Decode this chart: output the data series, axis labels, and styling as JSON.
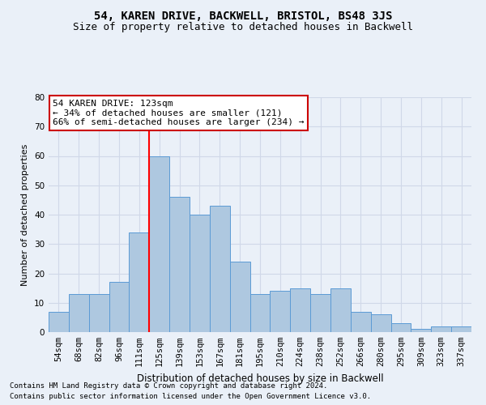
{
  "title": "54, KAREN DRIVE, BACKWELL, BRISTOL, BS48 3JS",
  "subtitle": "Size of property relative to detached houses in Backwell",
  "xlabel": "Distribution of detached houses by size in Backwell",
  "ylabel": "Number of detached properties",
  "bin_labels": [
    "54sqm",
    "68sqm",
    "82sqm",
    "96sqm",
    "111sqm",
    "125sqm",
    "139sqm",
    "153sqm",
    "167sqm",
    "181sqm",
    "195sqm",
    "210sqm",
    "224sqm",
    "238sqm",
    "252sqm",
    "266sqm",
    "280sqm",
    "295sqm",
    "309sqm",
    "323sqm",
    "337sqm"
  ],
  "bar_heights": [
    7,
    13,
    13,
    17,
    34,
    60,
    46,
    40,
    43,
    24,
    13,
    14,
    15,
    13,
    15,
    7,
    6,
    3,
    1,
    2,
    2
  ],
  "bar_color": "#aec8e0",
  "bar_edge_color": "#5b9bd5",
  "grid_color": "#d0d8e8",
  "background_color": "#eaf0f8",
  "ylim": [
    0,
    80
  ],
  "yticks": [
    0,
    10,
    20,
    30,
    40,
    50,
    60,
    70,
    80
  ],
  "red_line_index": 5,
  "annotation_line1": "54 KAREN DRIVE: 123sqm",
  "annotation_line2": "← 34% of detached houses are smaller (121)",
  "annotation_line3": "66% of semi-detached houses are larger (234) →",
  "annotation_box_color": "#ffffff",
  "annotation_box_edge": "#cc0000",
  "footnote1": "Contains HM Land Registry data © Crown copyright and database right 2024.",
  "footnote2": "Contains public sector information licensed under the Open Government Licence v3.0.",
  "title_fontsize": 10,
  "subtitle_fontsize": 9,
  "xlabel_fontsize": 8.5,
  "ylabel_fontsize": 8,
  "tick_fontsize": 7.5,
  "annotation_fontsize": 8,
  "footnote_fontsize": 6.5
}
